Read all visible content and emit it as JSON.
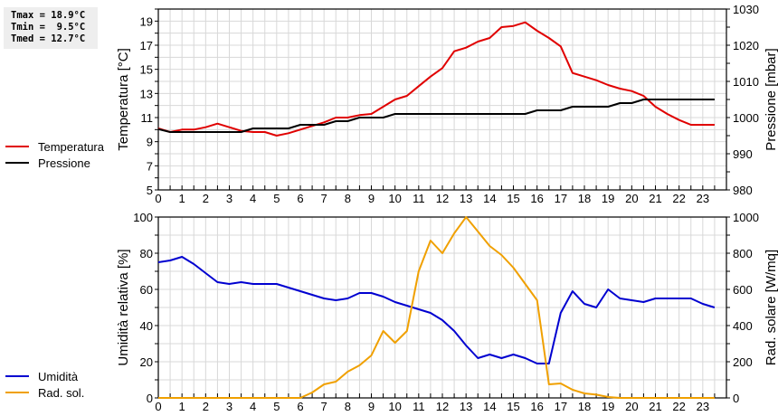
{
  "stats": {
    "tmax_label": "Tmax = 18.9°C",
    "tmin_label": "Tmin =  9.5°C",
    "tmed_label": "Tmed = 12.7°C"
  },
  "legend_top": [
    {
      "label": "Temperatura",
      "color": "#e00000"
    },
    {
      "label": "Pressione",
      "color": "#000000"
    }
  ],
  "legend_bottom": [
    {
      "label": "Umidità",
      "color": "#0000d0"
    },
    {
      "label": "Rad. sol.",
      "color": "#f0a000"
    }
  ],
  "chart_data": [
    {
      "type": "line",
      "title": "",
      "xlabel": "",
      "ylabel": "Temperatura [°C]",
      "y2label": "Pressione [mbar]",
      "xlim": [
        0,
        24
      ],
      "ylim": [
        5,
        20
      ],
      "y2lim": [
        980,
        1030
      ],
      "xticks": [
        0,
        1,
        2,
        3,
        4,
        5,
        6,
        7,
        8,
        9,
        10,
        11,
        12,
        13,
        14,
        15,
        16,
        17,
        18,
        19,
        20,
        21,
        22,
        23
      ],
      "yticks": [
        5,
        7,
        9,
        11,
        13,
        15,
        17,
        19
      ],
      "y2ticks": [
        980,
        990,
        1000,
        1010,
        1020,
        1030
      ],
      "grid": true,
      "legend_position": "left",
      "x": [
        0,
        0.5,
        1,
        1.5,
        2,
        2.5,
        3,
        3.5,
        4,
        4.5,
        5,
        5.5,
        6,
        6.5,
        7,
        7.5,
        8,
        8.5,
        9,
        9.5,
        10,
        10.5,
        11,
        11.5,
        12,
        12.5,
        13,
        13.5,
        14,
        14.5,
        15,
        15.5,
        16,
        16.5,
        17,
        17.5,
        18,
        18.5,
        19,
        19.5,
        20,
        20.5,
        21,
        21.5,
        22,
        22.5,
        23,
        23.5
      ],
      "series": [
        {
          "name": "Temperatura",
          "axis": "left",
          "color": "#e00000",
          "values": [
            10.1,
            9.8,
            10.0,
            10.0,
            10.2,
            10.5,
            10.2,
            9.9,
            9.8,
            9.8,
            9.5,
            9.7,
            10.0,
            10.3,
            10.6,
            11.0,
            11.0,
            11.2,
            11.3,
            11.9,
            12.5,
            12.8,
            13.6,
            14.4,
            15.1,
            16.5,
            16.8,
            17.3,
            17.6,
            18.5,
            18.6,
            18.9,
            18.2,
            17.6,
            16.9,
            14.7,
            14.4,
            14.1,
            13.7,
            13.4,
            13.2,
            12.8,
            11.9,
            11.3,
            10.8,
            10.4,
            10.4,
            10.4
          ]
        },
        {
          "name": "Pressione",
          "axis": "right",
          "color": "#000000",
          "values": [
            996.8,
            996,
            996,
            996,
            996,
            996,
            996,
            996,
            997,
            997,
            997,
            997,
            998,
            998,
            998,
            999,
            999,
            1000,
            1000,
            1000,
            1001,
            1001,
            1001,
            1001,
            1001,
            1001,
            1001,
            1001,
            1001,
            1001,
            1001,
            1001,
            1002,
            1002,
            1002,
            1003,
            1003,
            1003,
            1003,
            1004,
            1004,
            1005,
            1005,
            1005,
            1005,
            1005,
            1005,
            1005
          ]
        }
      ]
    },
    {
      "type": "line",
      "title": "",
      "xlabel": "",
      "ylabel": "Umidità relativa [%]",
      "y2label": "Rad. solare [W/mq]",
      "xlim": [
        0,
        24
      ],
      "ylim": [
        0,
        100
      ],
      "y2lim": [
        0,
        1000
      ],
      "xticks": [
        0,
        1,
        2,
        3,
        4,
        5,
        6,
        7,
        8,
        9,
        10,
        11,
        12,
        13,
        14,
        15,
        16,
        17,
        18,
        19,
        20,
        21,
        22,
        23
      ],
      "yticks": [
        0,
        20,
        40,
        60,
        80,
        100
      ],
      "y2ticks": [
        0,
        200,
        400,
        600,
        800,
        1000
      ],
      "grid": true,
      "legend_position": "left",
      "x": [
        0,
        0.5,
        1,
        1.5,
        2,
        2.5,
        3,
        3.5,
        4,
        4.5,
        5,
        5.5,
        6,
        6.5,
        7,
        7.5,
        8,
        8.5,
        9,
        9.5,
        10,
        10.5,
        11,
        11.5,
        12,
        12.5,
        13,
        13.5,
        14,
        14.5,
        15,
        15.5,
        16,
        16.5,
        17,
        17.5,
        18,
        18.5,
        19,
        19.5,
        20,
        20.5,
        21,
        21.5,
        22,
        22.5,
        23,
        23.5
      ],
      "series": [
        {
          "name": "Umidità",
          "axis": "left",
          "color": "#0000d0",
          "values": [
            75,
            76,
            78,
            74,
            69,
            64,
            63,
            64,
            63,
            63,
            63,
            61,
            59,
            57,
            55,
            54,
            55,
            58,
            58,
            56,
            53,
            51,
            49,
            47,
            43,
            37,
            29,
            22,
            24,
            22,
            24,
            22,
            19,
            19,
            47,
            59,
            52,
            50,
            60,
            55,
            54,
            53,
            55,
            55,
            55,
            55,
            52,
            50
          ]
        },
        {
          "name": "Rad. sol.",
          "axis": "right",
          "color": "#f0a000",
          "values": [
            0,
            0,
            0,
            0,
            0,
            0,
            0,
            0,
            0,
            0,
            0,
            0,
            0,
            30,
            75,
            90,
            145,
            180,
            235,
            370,
            305,
            370,
            700,
            870,
            800,
            910,
            1000,
            920,
            840,
            790,
            720,
            630,
            540,
            75,
            80,
            45,
            25,
            18,
            5,
            0,
            0,
            0,
            0,
            0,
            0,
            0,
            0,
            0
          ]
        }
      ]
    }
  ]
}
